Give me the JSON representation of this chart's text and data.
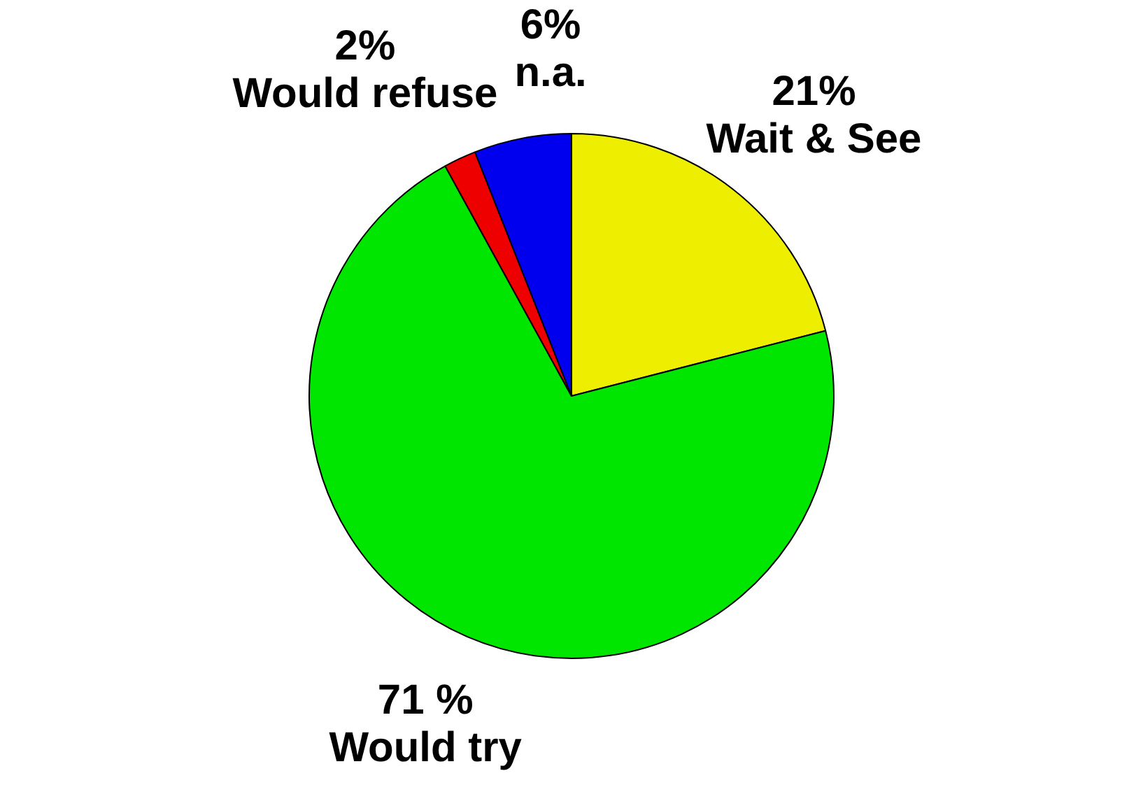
{
  "chart_data": {
    "type": "pie",
    "categories": [
      "Wait & See",
      "Would try",
      "Would refuse",
      "n.a."
    ],
    "values": [
      21,
      71,
      2,
      6
    ],
    "colors": [
      "#eeee00",
      "#00e600",
      "#ee0000",
      "#0000ee"
    ],
    "value_labels": [
      "21%",
      "71 %",
      "2%",
      "6%"
    ],
    "legend": false
  }
}
